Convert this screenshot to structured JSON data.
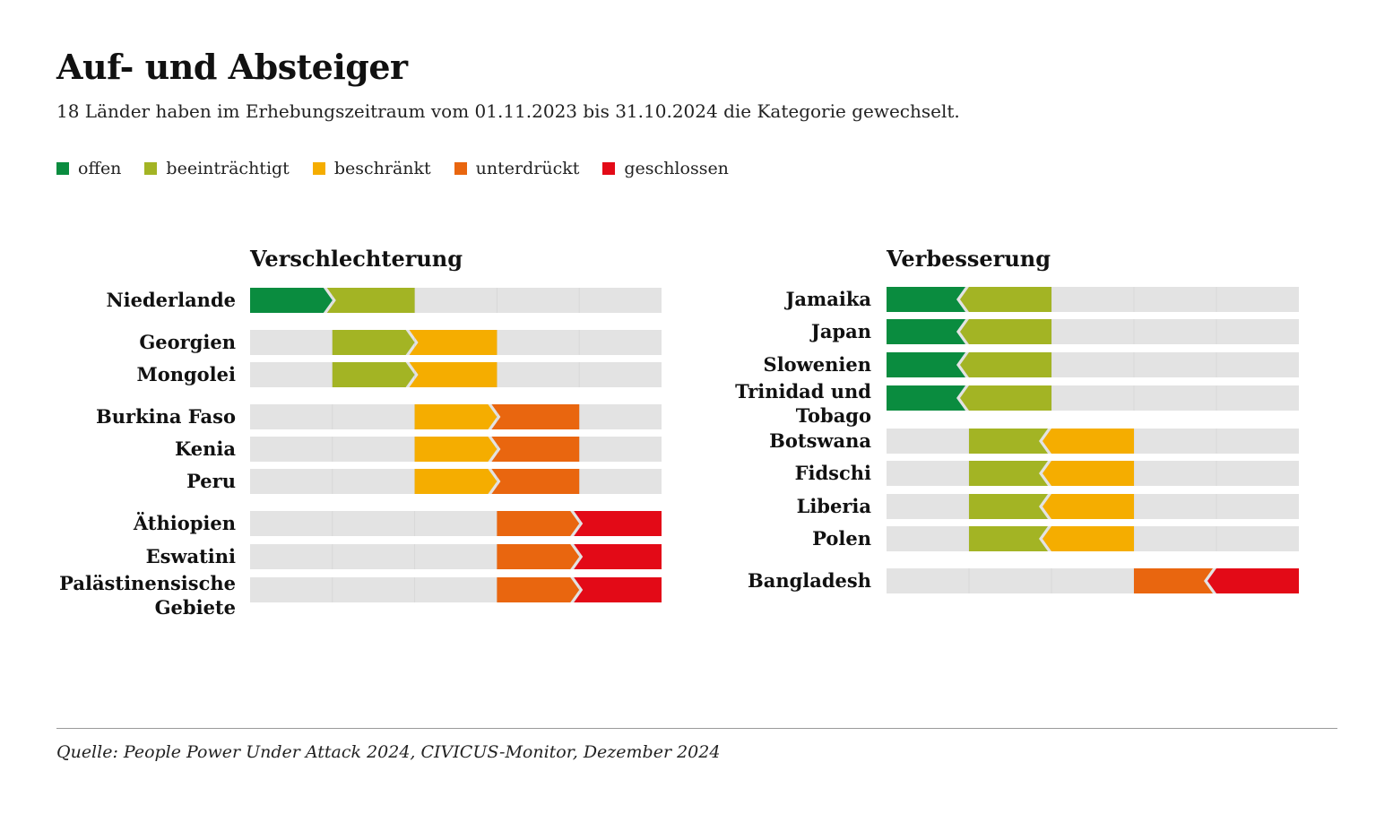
{
  "title": "Auf- und Absteiger",
  "subtitle": "18 Länder haben im Erhebungszeitraum vom 01.11.2023 bis 31.10.2024 die Kategorie gewechselt.",
  "source": "Quelle: People Power Under Attack 2024, CIVICUS-Monitor, Dezember 2024",
  "legend": [
    {
      "label": "offen",
      "color": "#0a8c3f"
    },
    {
      "label": "beeinträchtigt",
      "color": "#a3b424"
    },
    {
      "label": "beschränkt",
      "color": "#f5ad00"
    },
    {
      "label": "unterdrückt",
      "color": "#e9660f"
    },
    {
      "label": "geschlossen",
      "color": "#e30a17"
    }
  ],
  "chart_data": {
    "type": "bar",
    "categories": [
      "offen",
      "beeinträchtigt",
      "beschränkt",
      "unterdrückt",
      "geschlossen"
    ],
    "colors": {
      "offen": "#0a8c3f",
      "beeinträchtigt": "#a3b424",
      "beschränkt": "#f5ad00",
      "unterdrückt": "#e9660f",
      "geschlossen": "#e30a17",
      "track": "#e3e3e3"
    },
    "panels": [
      {
        "title": "Verschlechterung",
        "direction": "right",
        "rows": [
          {
            "country": "Niederlande",
            "from": "offen",
            "to": "beeinträchtigt"
          },
          {
            "country": "Georgien",
            "from": "beeinträchtigt",
            "to": "beschränkt"
          },
          {
            "country": "Mongolei",
            "from": "beeinträchtigt",
            "to": "beschränkt"
          },
          {
            "country": "Burkina Faso",
            "from": "beschränkt",
            "to": "unterdrückt"
          },
          {
            "country": "Kenia",
            "from": "beschränkt",
            "to": "unterdrückt"
          },
          {
            "country": "Peru",
            "from": "beschränkt",
            "to": "unterdrückt"
          },
          {
            "country": "Äthiopien",
            "from": "unterdrückt",
            "to": "geschlossen"
          },
          {
            "country": "Eswatini",
            "from": "unterdrückt",
            "to": "geschlossen"
          },
          {
            "country": "Palästinensische Gebiete",
            "from": "unterdrückt",
            "to": "geschlossen"
          }
        ]
      },
      {
        "title": "Verbesserung",
        "direction": "left",
        "rows": [
          {
            "country": "Jamaika",
            "from": "beeinträchtigt",
            "to": "offen"
          },
          {
            "country": "Japan",
            "from": "beeinträchtigt",
            "to": "offen"
          },
          {
            "country": "Slowenien",
            "from": "beeinträchtigt",
            "to": "offen"
          },
          {
            "country": "Trinidad und Tobago",
            "from": "beeinträchtigt",
            "to": "offen"
          },
          {
            "country": "Botswana",
            "from": "beschränkt",
            "to": "beeinträchtigt"
          },
          {
            "country": "Fidschi",
            "from": "beschränkt",
            "to": "beeinträchtigt"
          },
          {
            "country": "Liberia",
            "from": "beschränkt",
            "to": "beeinträchtigt"
          },
          {
            "country": "Polen",
            "from": "beschränkt",
            "to": "beeinträchtigt"
          },
          {
            "country": "Bangladesh",
            "from": "geschlossen",
            "to": "unterdrückt"
          }
        ]
      }
    ]
  }
}
